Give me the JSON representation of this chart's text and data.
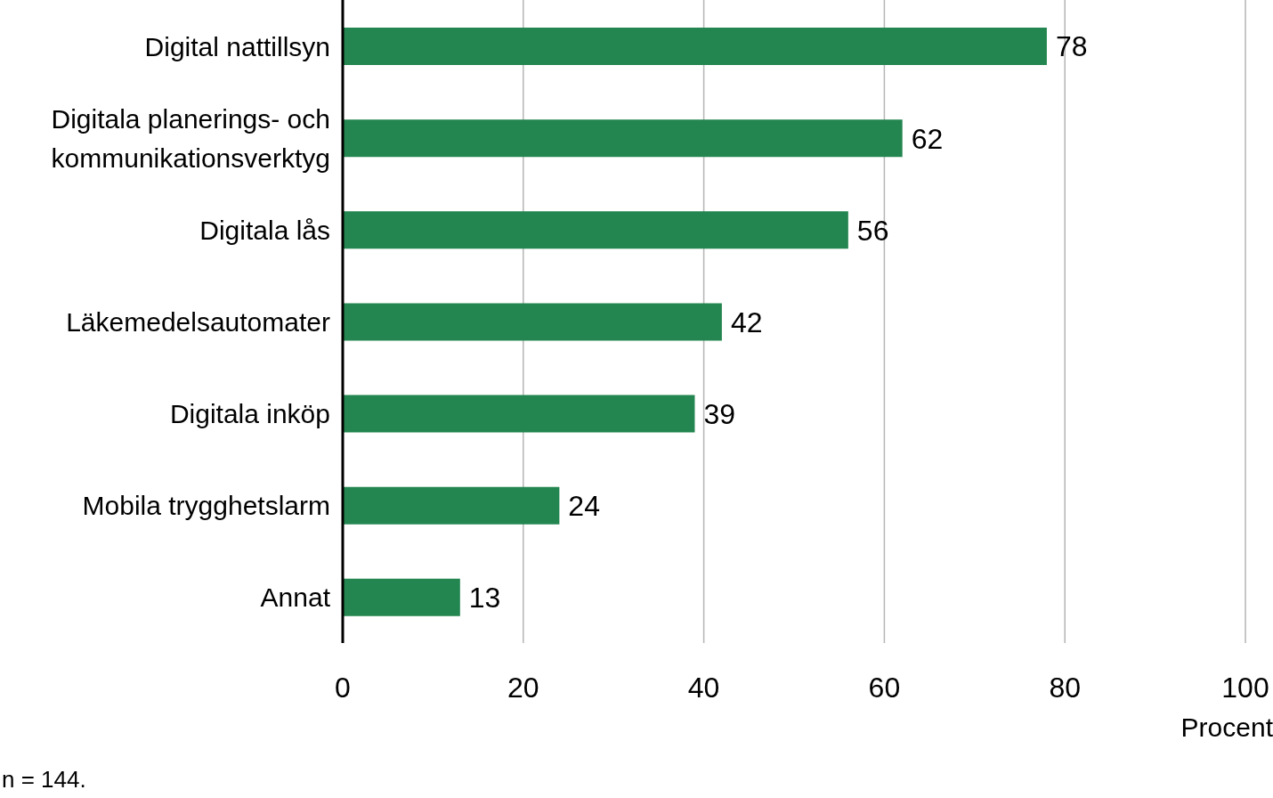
{
  "chart_data": {
    "type": "bar",
    "orientation": "horizontal",
    "categories": [
      "Digital nattillsyn",
      "Digitala planerings- och kommunikationsverktyg",
      "Digitala lås",
      "Läkemedelsautomater",
      "Digitala inköp",
      "Mobila trygghetslarm",
      "Annat"
    ],
    "values": [
      78,
      62,
      56,
      42,
      39,
      24,
      13
    ],
    "color": "#23854f",
    "xlim": [
      0,
      100
    ],
    "xticks": [
      0,
      20,
      40,
      60,
      80,
      100
    ],
    "grid": "x",
    "data_labels": true,
    "xlabel": "Procent",
    "annotations": [
      "n = 144."
    ]
  }
}
